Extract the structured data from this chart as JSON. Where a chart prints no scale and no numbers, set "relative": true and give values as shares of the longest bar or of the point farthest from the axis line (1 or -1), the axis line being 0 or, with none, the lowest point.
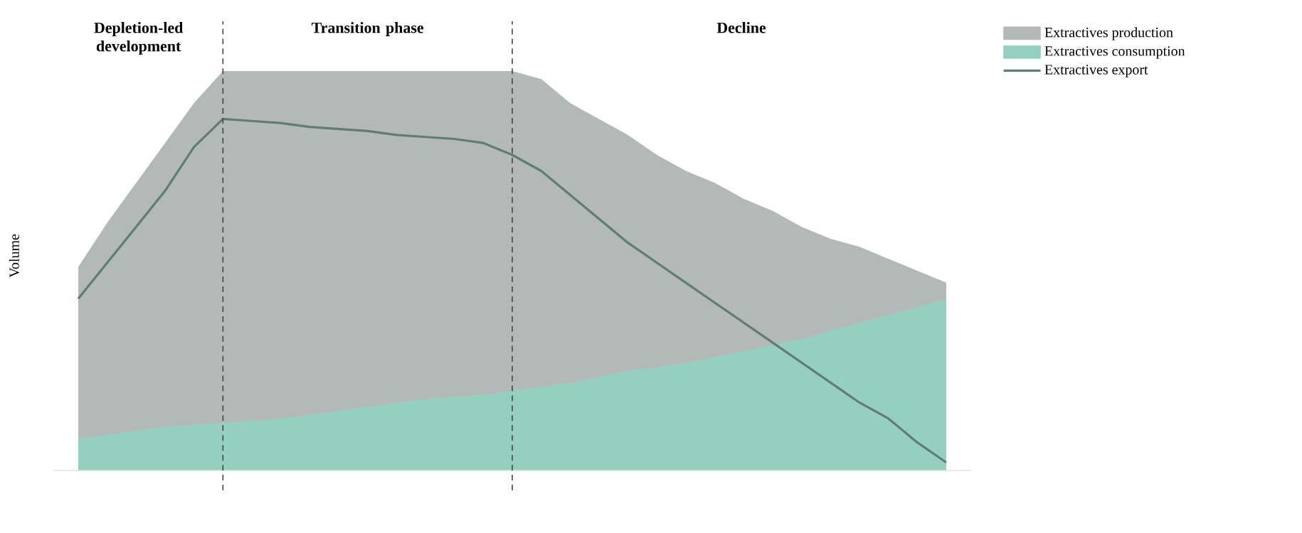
{
  "chart_data": {
    "type": "area",
    "relative": true,
    "ylabel": "Volume",
    "categories": [
      null,
      null,
      null,
      null,
      null,
      null,
      null,
      null,
      null,
      null,
      null,
      null,
      null,
      null,
      null,
      null,
      null,
      null,
      null,
      null,
      null,
      null,
      null,
      null,
      null,
      null,
      null,
      null,
      null,
      null,
      null
    ],
    "series": [
      {
        "name": "Extractives production",
        "color": "#b3b9b6",
        "values": [
          0.51,
          0.62,
          0.72,
          0.82,
          0.92,
          1,
          1,
          1,
          1,
          1,
          1,
          1,
          1,
          1,
          1,
          1,
          0.98,
          0.92,
          0.88,
          0.84,
          0.79,
          0.75,
          0.72,
          0.68,
          0.65,
          0.61,
          0.58,
          0.56,
          0.53,
          0.5,
          0.47
        ]
      },
      {
        "name": "Extractives consumption",
        "color": "#95cfc0",
        "values": [
          0.08,
          0.09,
          0.1,
          0.11,
          0.115,
          0.12,
          0.125,
          0.13,
          0.14,
          0.15,
          0.16,
          0.17,
          0.18,
          0.185,
          0.19,
          0.2,
          0.21,
          0.22,
          0.235,
          0.25,
          0.26,
          0.27,
          0.285,
          0.3,
          0.315,
          0.33,
          0.35,
          0.37,
          0.39,
          0.41,
          0.43
        ]
      },
      {
        "name": "Extractives export",
        "type": "line",
        "color": "#5f7d74",
        "values": [
          0.43,
          0.52,
          0.61,
          0.7,
          0.81,
          0.88,
          0.875,
          0.87,
          0.86,
          0.855,
          0.85,
          0.84,
          0.835,
          0.83,
          0.82,
          0.79,
          0.75,
          0.69,
          0.63,
          0.57,
          0.52,
          0.47,
          0.42,
          0.37,
          0.32,
          0.27,
          0.22,
          0.17,
          0.13,
          0.07,
          0.02
        ]
      }
    ],
    "annotations": [
      "Depletion-led development",
      "Transition phase",
      "Decline"
    ],
    "legend": "top right"
  }
}
